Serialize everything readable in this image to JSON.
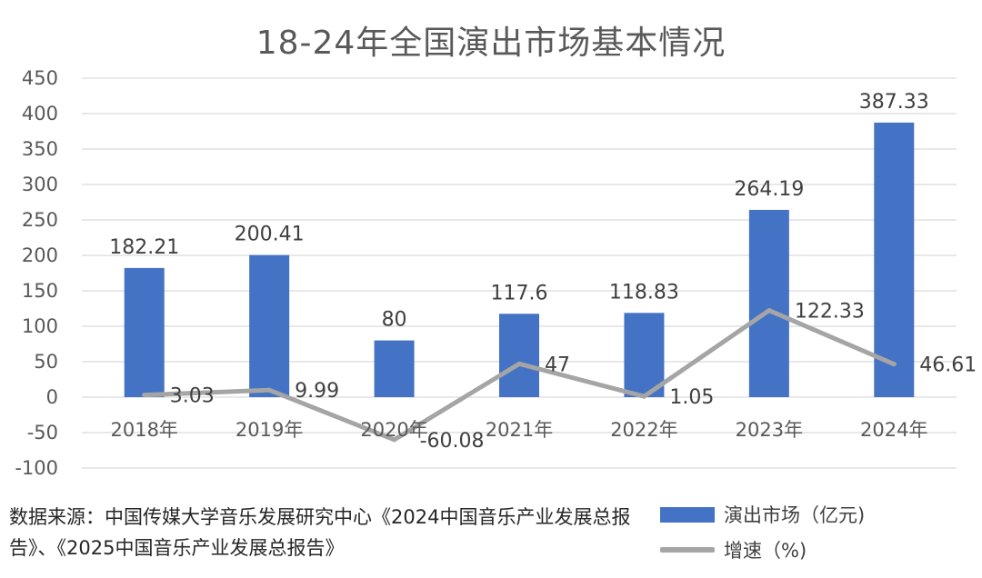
{
  "chart_data": {
    "type": "bar+line",
    "title": "18-24年全国演出市场基本情况",
    "categories": [
      "2018年",
      "2019年",
      "2020年",
      "2021年",
      "2022年",
      "2023年",
      "2024年"
    ],
    "series": [
      {
        "name": "演出市场（亿元)",
        "type": "bar",
        "color": "#4472c4",
        "values": [
          182.21,
          200.41,
          80,
          117.6,
          118.83,
          264.19,
          387.33
        ],
        "labels": [
          "182.21",
          "200.41",
          "80",
          "117.6",
          "118.83",
          "264.19",
          "387.33"
        ]
      },
      {
        "name": "增速（%)",
        "type": "line",
        "color": "#a5a5a5",
        "values": [
          3.03,
          9.99,
          -60.08,
          47,
          1.05,
          122.33,
          46.61
        ],
        "labels": [
          "3.03",
          "9.99",
          "-60.08",
          "47",
          "1.05",
          "122.33",
          "46.61"
        ]
      }
    ],
    "ylim": [
      -100,
      450
    ],
    "yticks": [
      "-100",
      "-50",
      "0",
      "50",
      "100",
      "150",
      "200",
      "250",
      "300",
      "350",
      "400",
      "450"
    ],
    "grid": true,
    "legend_position": "bottom-right"
  },
  "source_text": "数据来源：中国传媒大学音乐发展研究中心《2024中国音乐产业发展总报告》、《2025中国音乐产业发展总报告》"
}
